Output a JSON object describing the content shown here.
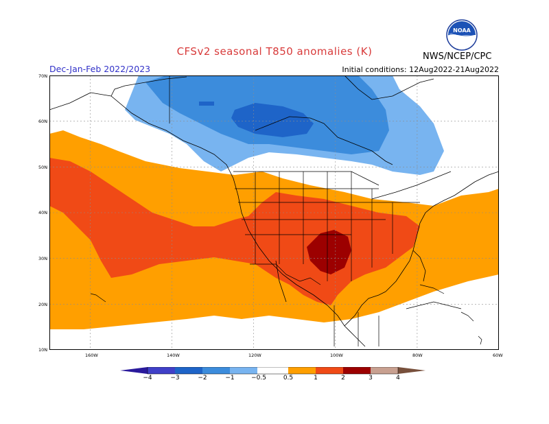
{
  "header": {
    "title": "CFSv2 seasonal T850 anomalies (K)",
    "season": "Dec-Jan-Feb 2022/2023",
    "initial_conditions": "Initial conditions: 12Aug2022-21Aug2022",
    "agency": "NWS/NCEP/CPC",
    "logo_text": "NOAA"
  },
  "map": {
    "lat_labels": [
      "70N",
      "60N",
      "50N",
      "40N",
      "30N",
      "20N",
      "10N"
    ],
    "lon_labels": [
      "160W",
      "140W",
      "120W",
      "100W",
      "80W",
      "60W"
    ],
    "colors": {
      "lt-4": "#2a1a9c",
      "-4to-3": "#4040c8",
      "-3to-2": "#1e64c8",
      "-2to-1": "#3c8cdc",
      "-1to-0.5": "#78b4f0",
      "-0.5to0.5": "#ffffff",
      "0.5to1": "#ff9f00",
      "1to2": "#f04a16",
      "2to3": "#9c0000",
      "3to4": "#c8a090",
      "gt4": "#78503c"
    }
  },
  "legend": {
    "labels": [
      "−4",
      "−3",
      "−2",
      "−1",
      "−0.5",
      "0.5",
      "1",
      "2",
      "3",
      "4"
    ]
  }
}
